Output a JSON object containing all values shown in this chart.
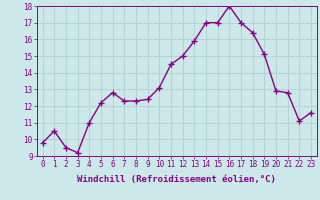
{
  "x": [
    0,
    1,
    2,
    3,
    4,
    5,
    6,
    7,
    8,
    9,
    10,
    11,
    12,
    13,
    14,
    15,
    16,
    17,
    18,
    19,
    20,
    21,
    22,
    23
  ],
  "y": [
    9.8,
    10.5,
    9.5,
    9.2,
    11.0,
    12.2,
    12.8,
    12.3,
    12.3,
    12.4,
    13.1,
    14.5,
    15.0,
    15.9,
    17.0,
    17.0,
    18.0,
    17.0,
    16.4,
    15.1,
    12.9,
    12.8,
    11.1,
    11.6
  ],
  "line_color": "#880088",
  "marker": "+",
  "marker_size": 4,
  "marker_linewidth": 1.0,
  "bg_color": "#cce8e8",
  "grid_color": "#aacccc",
  "xlabel": "Windchill (Refroidissement éolien,°C)",
  "ylim": [
    9,
    18
  ],
  "xlim": [
    -0.5,
    23.5
  ],
  "yticks": [
    9,
    10,
    11,
    12,
    13,
    14,
    15,
    16,
    17,
    18
  ],
  "xticks": [
    0,
    1,
    2,
    3,
    4,
    5,
    6,
    7,
    8,
    9,
    10,
    11,
    12,
    13,
    14,
    15,
    16,
    17,
    18,
    19,
    20,
    21,
    22,
    23
  ],
  "tick_fontsize": 5.5,
  "label_fontsize": 6.5,
  "linewidth": 1.0
}
